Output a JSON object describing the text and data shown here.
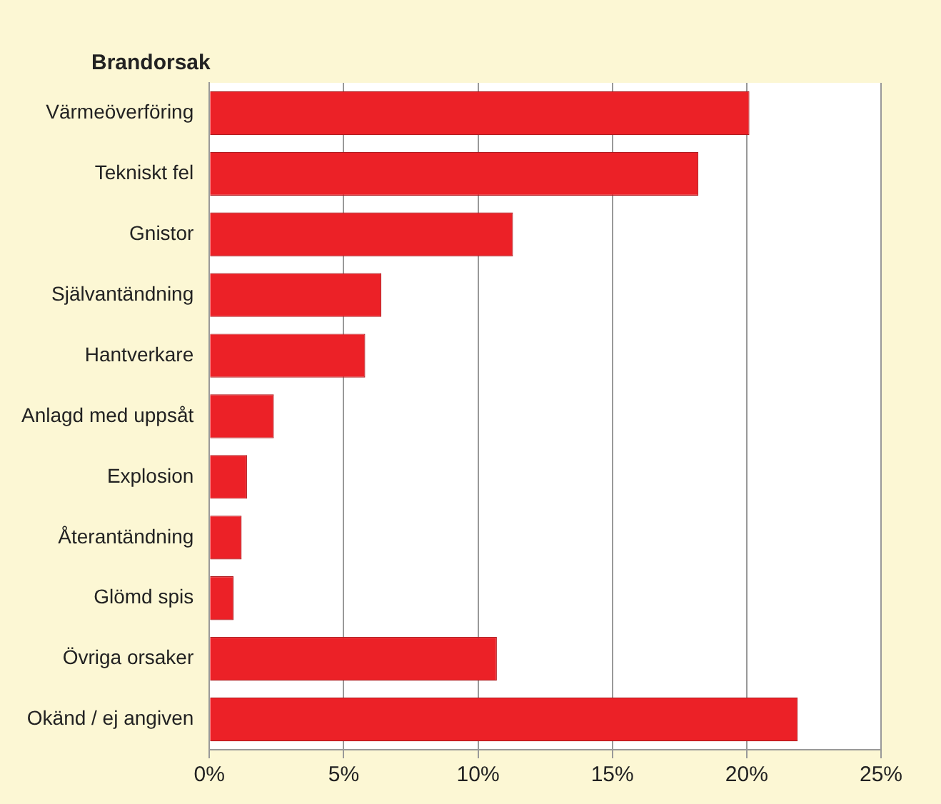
{
  "chart_data": {
    "type": "bar",
    "orientation": "horizontal",
    "ylabel": "Brandorsak",
    "categories": [
      "Värmeöverföring",
      "Tekniskt fel",
      "Gnistor",
      "Självantändning",
      "Hantverkare",
      "Anlagd med uppsåt",
      "Explosion",
      "Återantändning",
      "Glömd spis",
      "Övriga orsaker",
      "Okänd / ej angiven"
    ],
    "values": [
      20.1,
      18.2,
      11.3,
      6.4,
      5.8,
      2.4,
      1.4,
      1.2,
      0.9,
      10.7,
      21.9
    ],
    "color": "#ec2127",
    "xlim": [
      0,
      25
    ],
    "xticks": [
      {
        "value": 0,
        "label": "0%"
      },
      {
        "value": 5,
        "label": "5%"
      },
      {
        "value": 10,
        "label": "10%"
      },
      {
        "value": 15,
        "label": "15%"
      },
      {
        "value": 20,
        "label": "20%"
      },
      {
        "value": 25,
        "label": "25%"
      }
    ],
    "grid": "x",
    "legend": false
  }
}
